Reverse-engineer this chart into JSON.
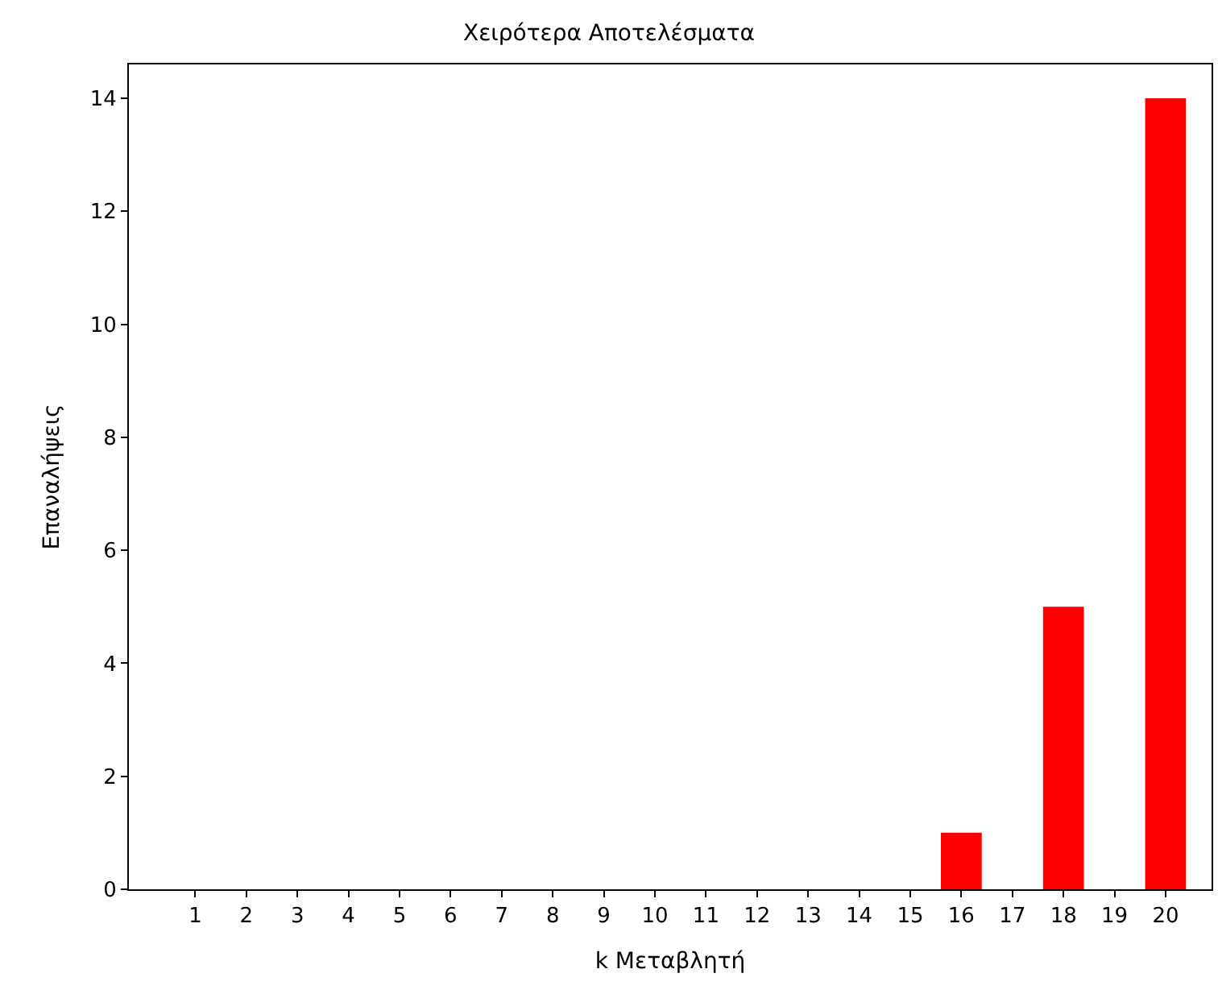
{
  "chart_data": {
    "type": "bar",
    "title": "Χειρότερα Αποτελέσματα",
    "xlabel": "k Μεταβλητή",
    "ylabel": "Επαναλήψεις",
    "x": [
      16,
      18,
      20
    ],
    "values": [
      1,
      5,
      14
    ],
    "color": "#ff0000",
    "xlim": [
      -0.3,
      20.9
    ],
    "xticks": [
      1,
      2,
      3,
      4,
      5,
      6,
      7,
      8,
      9,
      10,
      11,
      12,
      13,
      14,
      15,
      16,
      17,
      18,
      19,
      20
    ],
    "ylim": [
      0,
      14.6
    ],
    "yticks": [
      0,
      2,
      4,
      6,
      8,
      10,
      12,
      14
    ]
  }
}
